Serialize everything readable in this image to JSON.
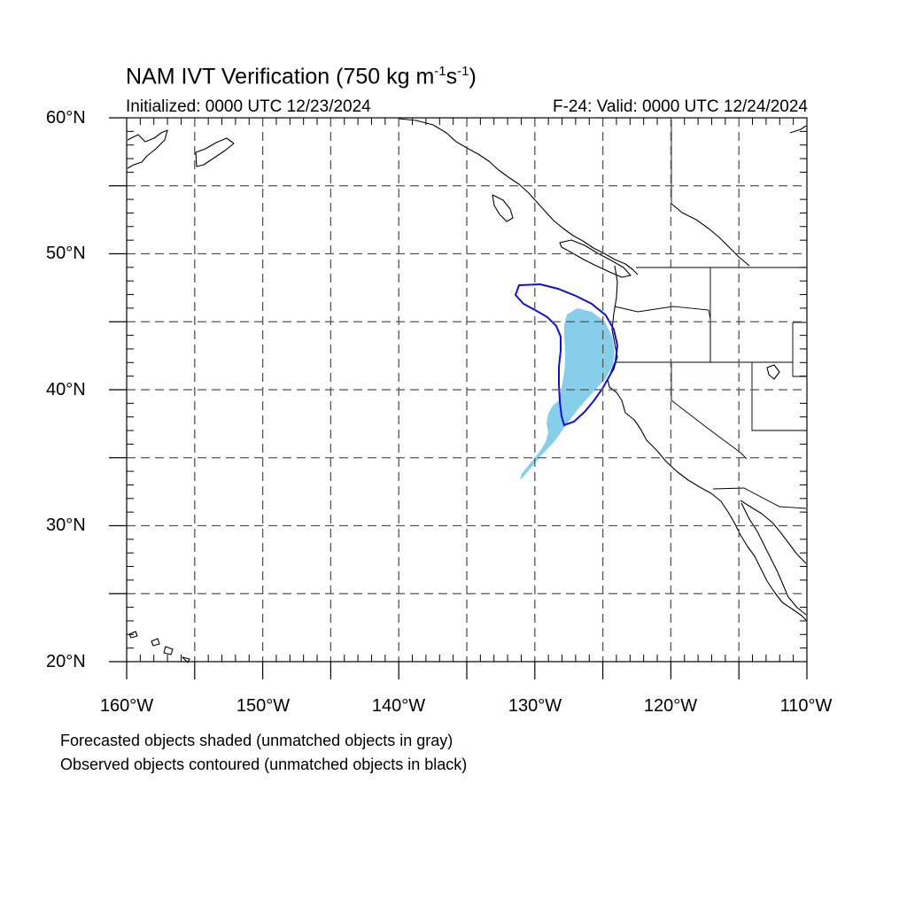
{
  "title": {
    "main": "NAM IVT Verification (750 kg m",
    "exp1": "-1",
    "mid": "s",
    "exp2": "-1",
    "end": ")"
  },
  "subtitle": {
    "initialized": "Initialized: 0000 UTC 12/23/2024",
    "valid": "F-24: Valid: 0000 UTC 12/24/2024"
  },
  "map": {
    "lat_range": [
      20,
      60
    ],
    "lon_range": [
      -160,
      -110
    ],
    "lat_labels": [
      "60°N",
      "50°N",
      "40°N",
      "30°N",
      "20°N"
    ],
    "lon_labels": [
      "160°W",
      "150°W",
      "140°W",
      "130°W",
      "120°W",
      "110°W"
    ],
    "forecast_object_color": "#87ceeb",
    "observed_contour_color": "#1010d0"
  },
  "legend": {
    "line1": "Forecasted objects shaded (unmatched objects in gray)",
    "line2": "Observed objects contoured (unmatched objects in black)"
  }
}
